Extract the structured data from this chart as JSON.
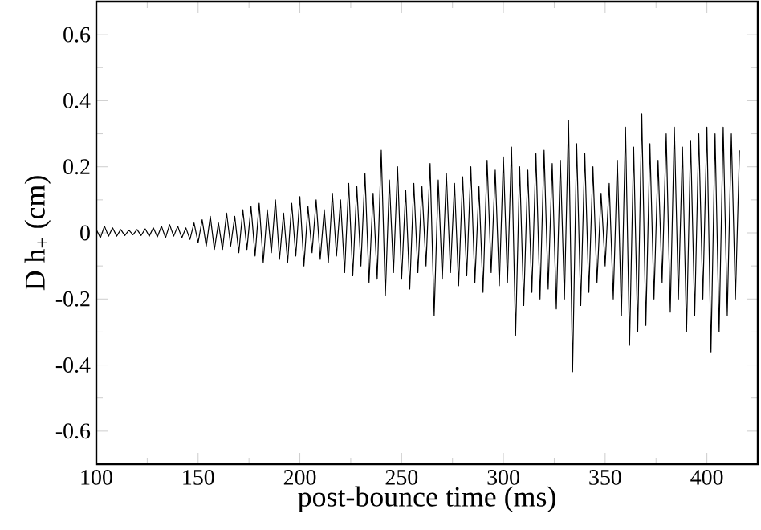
{
  "chart_data": {
    "type": "line",
    "xlabel": "post-bounce time (ms)",
    "ylabel": "D h$_{+}$ (cm)",
    "xlim": [
      100,
      425
    ],
    "ylim": [
      -0.7,
      0.7
    ],
    "xticks": [
      100,
      150,
      200,
      250,
      300,
      350,
      400
    ],
    "yticks": [
      -0.6,
      -0.4,
      -0.2,
      0,
      0.2,
      0.4,
      0.6
    ],
    "marker": "none",
    "line_style": "solid",
    "series": [
      {
        "color": "#000000",
        "x": [
          100,
          102,
          104,
          106,
          108,
          110,
          112,
          114,
          116,
          118,
          120,
          122,
          124,
          126,
          128,
          130,
          132,
          134,
          136,
          138,
          140,
          142,
          144,
          146,
          148,
          150,
          152,
          154,
          156,
          158,
          160,
          162,
          164,
          166,
          168,
          170,
          172,
          174,
          176,
          178,
          180,
          182,
          184,
          186,
          188,
          190,
          192,
          194,
          196,
          198,
          200,
          202,
          204,
          206,
          208,
          210,
          212,
          214,
          216,
          218,
          220,
          222,
          224,
          226,
          228,
          230,
          232,
          234,
          236,
          238,
          240,
          242,
          244,
          246,
          248,
          250,
          252,
          254,
          256,
          258,
          260,
          262,
          264,
          266,
          268,
          270,
          272,
          274,
          276,
          278,
          280,
          282,
          284,
          286,
          288,
          290,
          292,
          294,
          296,
          298,
          300,
          302,
          304,
          306,
          308,
          310,
          312,
          314,
          316,
          318,
          320,
          322,
          324,
          326,
          328,
          330,
          332,
          334,
          336,
          338,
          340,
          342,
          344,
          346,
          348,
          350,
          352,
          354,
          356,
          358,
          360,
          362,
          364,
          366,
          368,
          370,
          372,
          374,
          376,
          378,
          380,
          382,
          384,
          386,
          388,
          390,
          392,
          394,
          396,
          398,
          400,
          402,
          404,
          406,
          408,
          410,
          412,
          414,
          416
        ],
        "values": [
          0.01,
          -0.015,
          0.02,
          -0.01,
          0.015,
          -0.01,
          0.01,
          -0.008,
          0.008,
          -0.006,
          0.01,
          -0.008,
          0.012,
          -0.01,
          0.015,
          -0.012,
          0.02,
          -0.015,
          0.025,
          -0.01,
          0.02,
          -0.015,
          0.015,
          -0.02,
          0.03,
          -0.03,
          0.04,
          -0.04,
          0.05,
          -0.05,
          0.03,
          -0.05,
          0.06,
          -0.04,
          0.05,
          -0.06,
          0.07,
          -0.05,
          0.08,
          -0.07,
          0.09,
          -0.09,
          0.07,
          -0.06,
          0.1,
          -0.08,
          0.06,
          -0.09,
          0.09,
          -0.07,
          0.11,
          -0.1,
          0.08,
          -0.06,
          0.1,
          -0.08,
          0.07,
          -0.09,
          0.12,
          -0.07,
          0.1,
          -0.12,
          0.15,
          -0.13,
          0.14,
          -0.1,
          0.18,
          -0.15,
          0.12,
          -0.14,
          0.25,
          -0.19,
          0.16,
          -0.12,
          0.2,
          -0.14,
          0.13,
          -0.17,
          0.15,
          -0.12,
          0.14,
          -0.1,
          0.21,
          -0.25,
          0.16,
          -0.14,
          0.18,
          -0.12,
          0.15,
          -0.16,
          0.17,
          -0.13,
          0.2,
          -0.15,
          0.14,
          -0.18,
          0.22,
          -0.12,
          0.19,
          -0.16,
          0.23,
          -0.15,
          0.26,
          -0.31,
          0.2,
          -0.22,
          0.19,
          -0.18,
          0.24,
          -0.2,
          0.25,
          -0.17,
          0.21,
          -0.23,
          0.22,
          -0.2,
          0.34,
          -0.42,
          0.27,
          -0.22,
          0.24,
          -0.18,
          0.2,
          -0.15,
          0.12,
          -0.1,
          0.15,
          -0.2,
          0.22,
          -0.25,
          0.32,
          -0.34,
          0.26,
          -0.3,
          0.36,
          -0.28,
          0.27,
          -0.2,
          0.22,
          -0.15,
          0.3,
          -0.24,
          0.32,
          -0.2,
          0.26,
          -0.3,
          0.28,
          -0.25,
          0.3,
          -0.2,
          0.32,
          -0.36,
          0.3,
          -0.3,
          0.32,
          -0.25,
          0.3,
          -0.2,
          0.25
        ]
      }
    ]
  }
}
